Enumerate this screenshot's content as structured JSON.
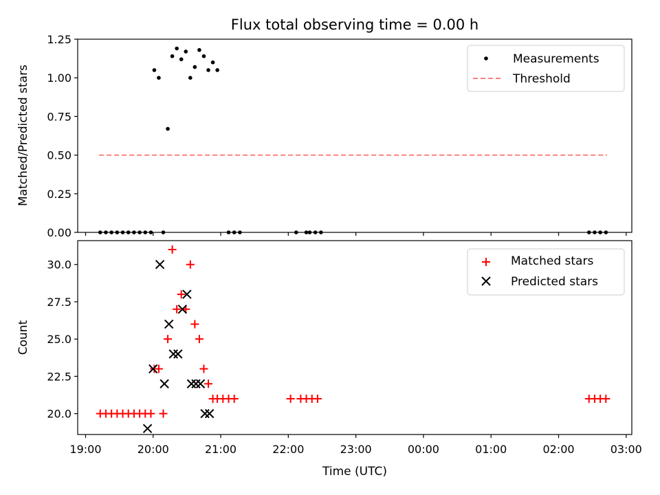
{
  "chart_data": [
    {
      "type": "scatter",
      "title": "Flux total observing time = 0.00 h",
      "xlabel": "",
      "ylabel": "Matched/Predicted stars",
      "xlim": [
        "18:53",
        "03:05"
      ],
      "ylim": [
        0,
        1.25
      ],
      "yticks": [
        0.0,
        0.25,
        0.5,
        0.75,
        1.0,
        1.25
      ],
      "ytick_labels": [
        "0.00",
        "0.25",
        "0.50",
        "0.75",
        "1.00",
        "1.25"
      ],
      "xtick_labels_shown": false,
      "legend_position": "top-right",
      "series": [
        {
          "name": "Measurements",
          "marker": "dot",
          "color": "#000000",
          "points": [
            [
              "19:13",
              0
            ],
            [
              "19:18",
              0
            ],
            [
              "19:23",
              0
            ],
            [
              "19:28",
              0
            ],
            [
              "19:33",
              0
            ],
            [
              "19:38",
              0
            ],
            [
              "19:43",
              0
            ],
            [
              "19:48",
              0
            ],
            [
              "19:53",
              0
            ],
            [
              "19:58",
              0
            ],
            [
              "20:01",
              1.05
            ],
            [
              "20:05",
              1.0
            ],
            [
              "20:09",
              0
            ],
            [
              "20:13",
              0.67
            ],
            [
              "20:17",
              1.14
            ],
            [
              "20:21",
              1.19
            ],
            [
              "20:25",
              1.12
            ],
            [
              "20:29",
              1.17
            ],
            [
              "20:33",
              1.0
            ],
            [
              "20:37",
              1.07
            ],
            [
              "20:41",
              1.18
            ],
            [
              "20:45",
              1.14
            ],
            [
              "20:49",
              1.05
            ],
            [
              "20:53",
              1.1
            ],
            [
              "20:57",
              1.05
            ],
            [
              "21:07",
              0
            ],
            [
              "21:12",
              0
            ],
            [
              "21:17",
              0
            ],
            [
              "22:07",
              0
            ],
            [
              "22:16",
              0
            ],
            [
              "22:19",
              0
            ],
            [
              "22:24",
              0
            ],
            [
              "22:29",
              0
            ],
            [
              "02:27",
              0
            ],
            [
              "02:32",
              0
            ],
            [
              "02:37",
              0
            ],
            [
              "02:42",
              0
            ]
          ]
        },
        {
          "name": "Threshold",
          "marker": "dashed-line",
          "color": "#ff7f7f",
          "points": [
            [
              "19:12",
              0.5
            ],
            [
              "02:43",
              0.5
            ]
          ]
        }
      ]
    },
    {
      "type": "scatter",
      "title": "",
      "xlabel": "Time (UTC)",
      "ylabel": "Count",
      "xlim": [
        "18:53",
        "03:05"
      ],
      "ylim": [
        18.6,
        31.6
      ],
      "yticks": [
        20.0,
        22.5,
        25.0,
        27.5,
        30.0
      ],
      "ytick_labels": [
        "20.0",
        "22.5",
        "25.0",
        "27.5",
        "30.0"
      ],
      "xticks": [
        "19:00",
        "20:00",
        "21:00",
        "22:00",
        "23:00",
        "00:00",
        "01:00",
        "02:00",
        "03:00"
      ],
      "legend_position": "top-right",
      "series": [
        {
          "name": "Matched stars",
          "marker": "plus",
          "color": "#ff0000",
          "points": [
            [
              "19:13",
              20
            ],
            [
              "19:18",
              20
            ],
            [
              "19:23",
              20
            ],
            [
              "19:28",
              20
            ],
            [
              "19:33",
              20
            ],
            [
              "19:38",
              20
            ],
            [
              "19:43",
              20
            ],
            [
              "19:48",
              20
            ],
            [
              "19:53",
              20
            ],
            [
              "19:58",
              20
            ],
            [
              "20:01",
              23
            ],
            [
              "20:05",
              23
            ],
            [
              "20:09",
              20
            ],
            [
              "20:13",
              25
            ],
            [
              "20:17",
              31
            ],
            [
              "20:21",
              27
            ],
            [
              "20:25",
              28
            ],
            [
              "20:29",
              27
            ],
            [
              "20:33",
              30
            ],
            [
              "20:37",
              26
            ],
            [
              "20:41",
              25
            ],
            [
              "20:45",
              23
            ],
            [
              "20:49",
              22
            ],
            [
              "20:53",
              21
            ],
            [
              "20:57",
              21
            ],
            [
              "21:02",
              21
            ],
            [
              "21:07",
              21
            ],
            [
              "21:12",
              21
            ],
            [
              "22:02",
              21
            ],
            [
              "22:11",
              21
            ],
            [
              "22:16",
              21
            ],
            [
              "22:21",
              21
            ],
            [
              "22:26",
              21
            ],
            [
              "02:27",
              21
            ],
            [
              "02:32",
              21
            ],
            [
              "02:37",
              21
            ],
            [
              "02:42",
              21
            ]
          ]
        },
        {
          "name": "Predicted stars",
          "marker": "x",
          "color": "#000000",
          "points": [
            [
              "19:55",
              19
            ],
            [
              "20:00",
              23
            ],
            [
              "20:06",
              30
            ],
            [
              "20:10",
              22
            ],
            [
              "20:14",
              26
            ],
            [
              "20:18",
              24
            ],
            [
              "20:22",
              24
            ],
            [
              "20:26",
              27
            ],
            [
              "20:30",
              28
            ],
            [
              "20:34",
              22
            ],
            [
              "20:38",
              22
            ],
            [
              "20:42",
              22
            ],
            [
              "20:46",
              20
            ],
            [
              "20:50",
              20
            ]
          ]
        }
      ]
    }
  ]
}
